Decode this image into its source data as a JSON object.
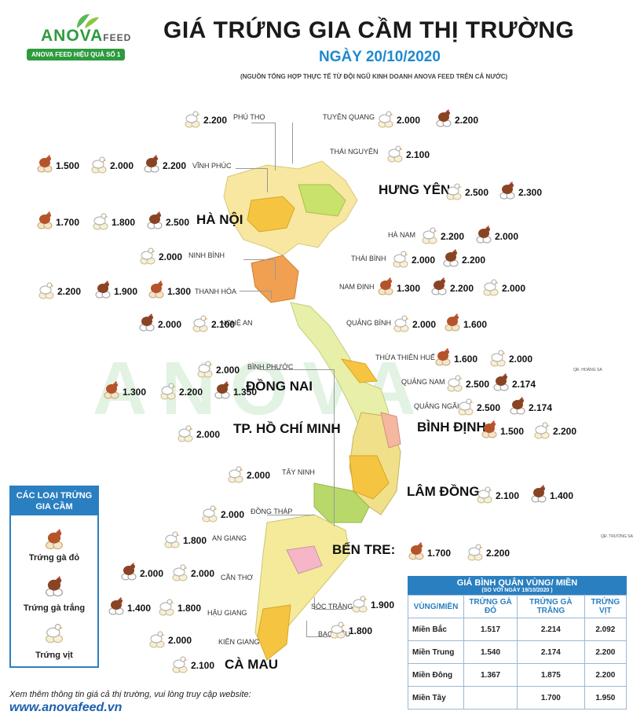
{
  "brand": {
    "logo_main": "ANOVA",
    "logo_sub": "FEED",
    "ribbon": "ANOVA FEED HIỆU QUẢ SỐ 1",
    "watermark": "ANOVA"
  },
  "header": {
    "title": "GIÁ TRỨNG GIA CẦM THỊ TRƯỜNG",
    "date": "NGÀY 20/10/2020",
    "source": "(NGUỒN TỔNG HỢP THỰC TẾ TỪ ĐỘI NGŨ KINH DOANH ANOVA FEED TRÊN CẢ NƯỚC)"
  },
  "colors": {
    "accent": "#2a7fc1",
    "brand_green": "#2e9b3e",
    "title_blue": "#1c8ad0"
  },
  "egg_types": {
    "red": "Trứng gà đỏ",
    "white": "Trứng gà trắng",
    "duck": "Trứng vịt"
  },
  "provinces": [
    {
      "name": "PHÚ THỌ",
      "prices": [
        {
          "type": "duck",
          "value": "2.200"
        }
      ]
    },
    {
      "name": "TUYÊN QUANG",
      "prices": [
        {
          "type": "duck",
          "value": "2.000"
        },
        {
          "type": "white",
          "value": "2.200"
        }
      ]
    },
    {
      "name": "THÁI NGUYÊN",
      "prices": [
        {
          "type": "duck",
          "value": "2.100"
        }
      ]
    },
    {
      "name": "VĨNH PHÚC",
      "prices": [
        {
          "type": "red",
          "value": "1.500"
        },
        {
          "type": "duck",
          "value": "2.000"
        },
        {
          "type": "white",
          "value": "2.200"
        }
      ]
    },
    {
      "name": "HƯNG YÊN",
      "prices": [
        {
          "type": "duck",
          "value": "2.500"
        },
        {
          "type": "white",
          "value": "2.300"
        }
      ]
    },
    {
      "name": "HÀ NỘI",
      "prices": [
        {
          "type": "red",
          "value": "1.700"
        },
        {
          "type": "duck",
          "value": "1.800"
        },
        {
          "type": "white",
          "value": "2.500"
        }
      ]
    },
    {
      "name": "HÀ NAM",
      "prices": [
        {
          "type": "duck",
          "value": "2.200"
        },
        {
          "type": "white",
          "value": "2.000"
        }
      ]
    },
    {
      "name": "NINH BÌNH",
      "prices": [
        {
          "type": "duck",
          "value": "2.000"
        }
      ]
    },
    {
      "name": "THÁI BÌNH",
      "prices": [
        {
          "type": "duck",
          "value": "2.000"
        },
        {
          "type": "white",
          "value": "2.200"
        }
      ]
    },
    {
      "name": "THANH HÓA",
      "prices": [
        {
          "type": "duck",
          "value": "2.200"
        },
        {
          "type": "white",
          "value": "1.900"
        },
        {
          "type": "red",
          "value": "1.300"
        }
      ]
    },
    {
      "name": "NAM ĐỊNH",
      "prices": [
        {
          "type": "red",
          "value": "1.300"
        },
        {
          "type": "white",
          "value": "2.200"
        },
        {
          "type": "duck",
          "value": "2.000"
        }
      ]
    },
    {
      "name": "NGHỆ AN",
      "prices": [
        {
          "type": "white",
          "value": "2.000"
        },
        {
          "type": "duck",
          "value": "2.100"
        }
      ]
    },
    {
      "name": "QUẢNG BÌNH",
      "prices": [
        {
          "type": "duck",
          "value": "2.000"
        },
        {
          "type": "red",
          "value": "1.600"
        }
      ]
    },
    {
      "name": "THỪA THIÊN HUẾ",
      "prices": [
        {
          "type": "red",
          "value": "1.600"
        },
        {
          "type": "duck",
          "value": "2.000"
        }
      ]
    },
    {
      "name": "BÌNH PHƯỚC",
      "prices": [
        {
          "type": "duck",
          "value": "2.000"
        }
      ]
    },
    {
      "name": "ĐỒNG NAI",
      "prices": [
        {
          "type": "red",
          "value": "1.300"
        },
        {
          "type": "duck",
          "value": "2.200"
        },
        {
          "type": "white",
          "value": "1.350"
        }
      ]
    },
    {
      "name": "QUẢNG NAM",
      "prices": [
        {
          "type": "duck",
          "value": "2.500"
        },
        {
          "type": "white",
          "value": "2.174"
        }
      ]
    },
    {
      "name": "QUẢNG NGÃI",
      "prices": [
        {
          "type": "duck",
          "value": "2.500"
        },
        {
          "type": "white",
          "value": "2.174"
        }
      ]
    },
    {
      "name": "TP. HỒ CHÍ MINH",
      "prices": [
        {
          "type": "duck",
          "value": "2.000"
        }
      ]
    },
    {
      "name": "BÌNH ĐỊNH",
      "prices": [
        {
          "type": "red",
          "value": "1.500"
        },
        {
          "type": "duck",
          "value": "2.200"
        }
      ]
    },
    {
      "name": "TÂY NINH",
      "prices": [
        {
          "type": "duck",
          "value": "2.000"
        }
      ]
    },
    {
      "name": "LÂM ĐỒNG",
      "prices": [
        {
          "type": "duck",
          "value": "2.100"
        },
        {
          "type": "white",
          "value": "1.400"
        }
      ]
    },
    {
      "name": "ĐỒNG THÁP",
      "prices": [
        {
          "type": "duck",
          "value": "2.000"
        }
      ]
    },
    {
      "name": "AN GIANG",
      "prices": [
        {
          "type": "duck",
          "value": "1.800"
        }
      ]
    },
    {
      "name": "BẾN TRE:",
      "prices": [
        {
          "type": "red",
          "value": "1.700"
        },
        {
          "type": "duck",
          "value": "2.200"
        }
      ]
    },
    {
      "name": "CẦN THƠ",
      "prices": [
        {
          "type": "white",
          "value": "2.000"
        },
        {
          "type": "duck",
          "value": "2.000"
        }
      ]
    },
    {
      "name": "HẬU GIANG",
      "prices": [
        {
          "type": "white",
          "value": "1.400"
        },
        {
          "type": "duck",
          "value": "1.800"
        }
      ]
    },
    {
      "name": "SÓC TRĂNG",
      "prices": [
        {
          "type": "duck",
          "value": "1.900"
        }
      ]
    },
    {
      "name": "KIÊN GIANG",
      "prices": [
        {
          "type": "duck",
          "value": "2.000"
        }
      ]
    },
    {
      "name": "BẠC LIÊU",
      "prices": [
        {
          "type": "duck",
          "value": "1.800"
        }
      ]
    },
    {
      "name": "CÀ MAU",
      "prices": [
        {
          "type": "duck",
          "value": "2.100"
        }
      ]
    }
  ],
  "islands": {
    "hoang_sa": "QĐ. HOÀNG SA",
    "truong_sa": "QĐ. TRƯỜNG SA"
  },
  "legend": {
    "title": "CÁC LOẠI TRỨNG GIA CẦM",
    "items": [
      {
        "type": "red",
        "label": "Trứng gà đỏ"
      },
      {
        "type": "white",
        "label": "Trứng gà trắng"
      },
      {
        "type": "duck",
        "label": "Trứng vịt"
      }
    ]
  },
  "averages": {
    "title": "GIÁ BÌNH QUÂN VÙNG/ MIỀN",
    "subtitle": "(SO VỚI NGÀY  19/10/2020    )",
    "headers": [
      "VÙNG/MIỀN",
      "TRỨNG GÀ ĐỎ",
      "TRỨNG GÀ TRẮNG",
      "TRỨNG VỊT"
    ],
    "rows": [
      [
        "Miền Bắc",
        "1.517",
        "2.214",
        "2.092"
      ],
      [
        "Miền Trung",
        "1.540",
        "2.174",
        "2.200"
      ],
      [
        "Miền Đông",
        "1.367",
        "1.875",
        "2.200"
      ],
      [
        "Miền Tây",
        "",
        "1.700",
        "1.950"
      ]
    ]
  },
  "footer": {
    "note": "Xem thêm thông tin giá cả thị trường, vui lòng truy cập website:",
    "website": "www.anovafeed.vn"
  }
}
